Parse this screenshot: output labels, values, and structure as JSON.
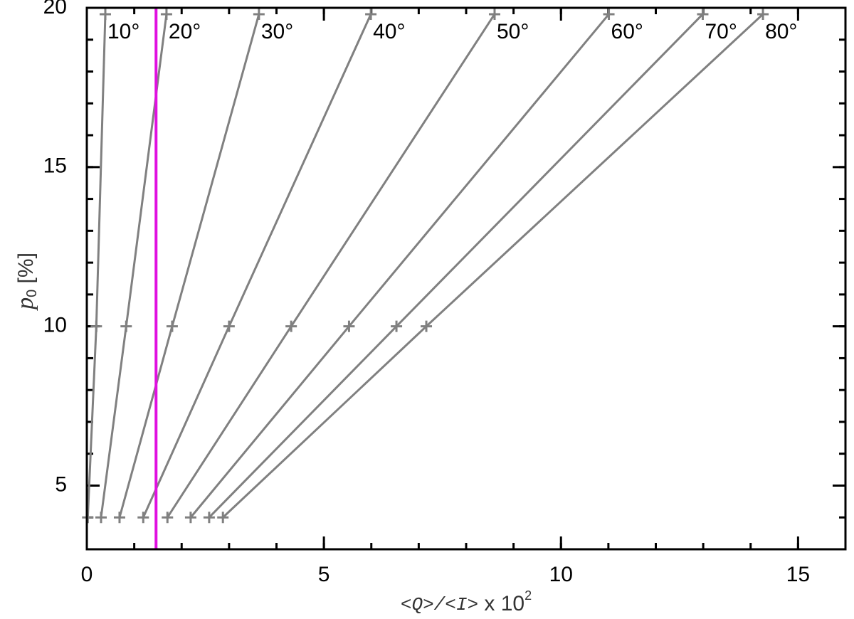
{
  "chart_data": {
    "type": "line",
    "xlabel": {
      "text": "<Q>/<I>",
      "suffix": " x 10",
      "power": "2"
    },
    "ylabel": {
      "symbol": "p",
      "subscript": "0",
      "unit": " [%]"
    },
    "xlim": [
      0,
      16
    ],
    "ylim": [
      3,
      20
    ],
    "xticks": [
      0,
      5,
      10,
      15
    ],
    "yticks": [
      5,
      10,
      15,
      20
    ],
    "xminor": 1,
    "yminor": 1,
    "series": [
      {
        "name": "10°",
        "color": "#808080",
        "x": [
          0.02,
          0.2,
          0.39
        ],
        "values": [
          4,
          10,
          19.8
        ]
      },
      {
        "name": "20°",
        "color": "#808080",
        "x": [
          0.3,
          0.83,
          1.68
        ],
        "values": [
          4,
          10,
          19.8
        ]
      },
      {
        "name": "30°",
        "color": "#808080",
        "x": [
          0.69,
          1.8,
          3.63
        ],
        "values": [
          4,
          10,
          19.8
        ]
      },
      {
        "name": "40°",
        "color": "#808080",
        "x": [
          1.19,
          3.0,
          5.99
        ],
        "values": [
          4,
          10,
          19.8
        ]
      },
      {
        "name": "50°",
        "color": "#808080",
        "x": [
          1.7,
          4.31,
          8.6
        ],
        "values": [
          4,
          10,
          19.8
        ]
      },
      {
        "name": "60°",
        "color": "#808080",
        "x": [
          2.19,
          5.53,
          11.01
        ],
        "values": [
          4,
          10,
          19.8
        ]
      },
      {
        "name": "70°",
        "color": "#808080",
        "x": [
          2.58,
          6.53,
          12.99
        ],
        "values": [
          4,
          10,
          19.8
        ]
      },
      {
        "name": "80°",
        "color": "#808080",
        "x": [
          2.87,
          7.16,
          14.26
        ],
        "values": [
          4,
          10,
          19.8
        ]
      }
    ],
    "vline": {
      "x": 1.46,
      "color": "#e010e0"
    }
  }
}
